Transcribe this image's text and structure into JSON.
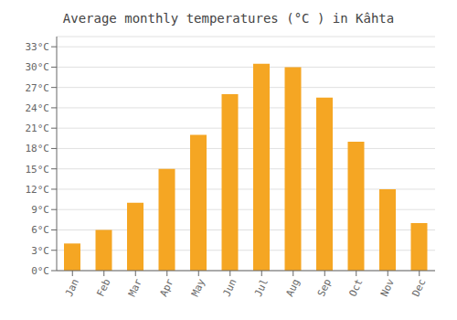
{
  "chart_data": {
    "type": "bar",
    "title": "Average monthly temperatures (°C ) in Kâhta",
    "categories": [
      "Jan",
      "Feb",
      "Mar",
      "Apr",
      "May",
      "Jun",
      "Jul",
      "Aug",
      "Sep",
      "Oct",
      "Nov",
      "Dec"
    ],
    "values": [
      4,
      6,
      10,
      15,
      20,
      26,
      30.5,
      30,
      25.5,
      19,
      12,
      7
    ],
    "color": "#F5A623",
    "ylim": [
      0,
      34.5
    ],
    "yticks": [
      {
        "value": 0,
        "label": "0°C"
      },
      {
        "value": 3,
        "label": "3°C"
      },
      {
        "value": 6,
        "label": "6°C"
      },
      {
        "value": 9,
        "label": "9°C"
      },
      {
        "value": 12,
        "label": "12°C"
      },
      {
        "value": 15,
        "label": "15°C"
      },
      {
        "value": 18,
        "label": "18°C"
      },
      {
        "value": 21,
        "label": "21°C"
      },
      {
        "value": 24,
        "label": "24°C"
      },
      {
        "value": 27,
        "label": "27°C"
      },
      {
        "value": 30,
        "label": "30°C"
      },
      {
        "value": 33,
        "label": "33°C"
      }
    ],
    "grid": true
  }
}
